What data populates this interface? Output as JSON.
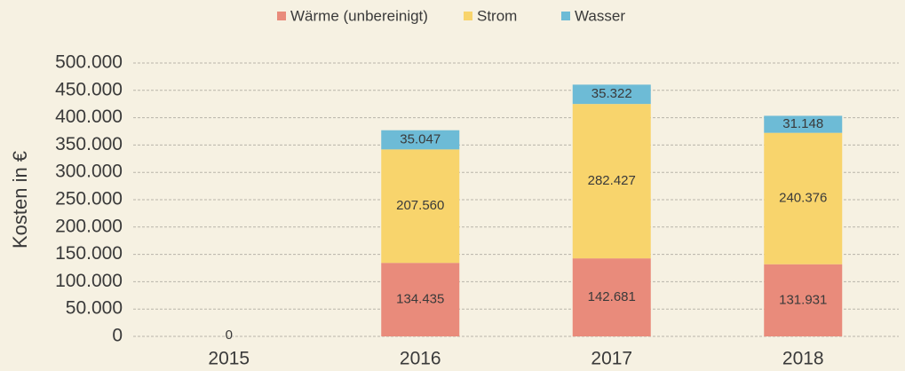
{
  "chart_data": {
    "type": "stacked_bar",
    "categories": [
      "2015",
      "2016",
      "2017",
      "2018"
    ],
    "series": [
      {
        "name": "Wärme (unbereinigt)",
        "color": "#e98b7b",
        "values": [
          0,
          134435,
          142681,
          131931
        ],
        "value_labels": [
          "0",
          "134.435",
          "142.681",
          "131.931"
        ]
      },
      {
        "name": "Strom",
        "color": "#f8d46c",
        "values": [
          null,
          207560,
          282427,
          240376
        ],
        "value_labels": [
          null,
          "207.560",
          "282.427",
          "240.376"
        ]
      },
      {
        "name": "Wasser",
        "color": "#6dbbd6",
        "values": [
          null,
          35047,
          35322,
          31148
        ],
        "value_labels": [
          null,
          "35.047",
          "35.322",
          "31.148"
        ]
      }
    ],
    "ylabel": "Kosten in €",
    "ylim": [
      0,
      500000
    ],
    "yticks": [
      0,
      {
        "value": 50000,
        "label": "50.000"
      },
      {
        "value": 100000,
        "label": "100.000"
      },
      {
        "value": 150000,
        "label": "150.000"
      },
      {
        "value": 200000,
        "label": "200.000"
      },
      {
        "value": 250000,
        "label": "250.000"
      },
      {
        "value": 300000,
        "label": "300.000"
      },
      {
        "value": 350000,
        "label": "350.000"
      },
      {
        "value": 400000,
        "label": "400.000"
      },
      {
        "value": 450000,
        "label": "450.000"
      },
      {
        "value": 500000,
        "label": "500.000"
      }
    ],
    "grid": true,
    "legend": "top"
  }
}
